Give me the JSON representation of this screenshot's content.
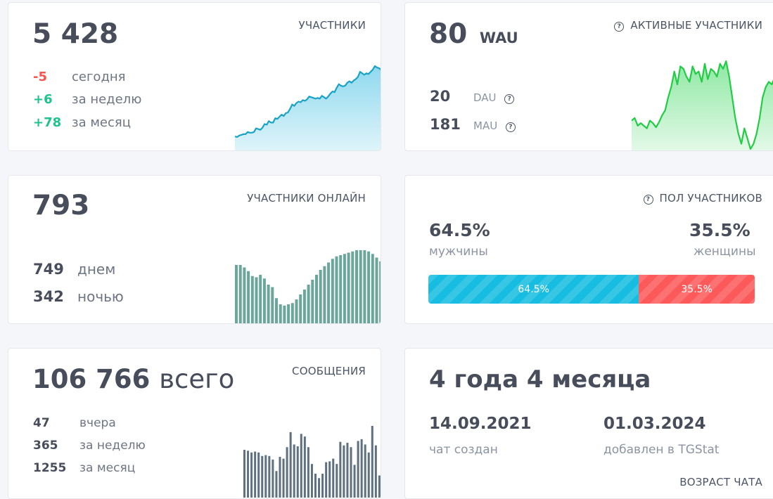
{
  "members": {
    "count": "5 428",
    "caption": "УЧАСТНИКИ",
    "rows": [
      {
        "delta": "-5",
        "label": "сегодня"
      },
      {
        "delta": "+6",
        "label": "за неделю"
      },
      {
        "delta": "+78",
        "label": "за месяц"
      }
    ]
  },
  "wau": {
    "count": "80",
    "unit": "WAU",
    "caption": "АКТИВНЫЕ УЧАСТНИКИ",
    "rows": [
      {
        "value": "20",
        "label": "DAU"
      },
      {
        "value": "181",
        "label": "MAU"
      }
    ]
  },
  "online": {
    "count": "793",
    "caption": "УЧАСТНИКИ ОНЛАЙН",
    "rows": [
      {
        "value": "749",
        "label": "днем"
      },
      {
        "value": "342",
        "label": "ночью"
      }
    ]
  },
  "gender": {
    "caption": "ПОЛ УЧАСТНИКОВ",
    "male_pct": "64.5%",
    "male_label": "мужчины",
    "female_pct": "35.5%",
    "female_label": "женщины",
    "male_fraction": 0.645,
    "male_bar_label": "64.5%",
    "female_bar_label": "35.5%",
    "male_color": "#16bde0",
    "female_color": "#fc5a5a"
  },
  "messages": {
    "total": "106 766",
    "total_suffix": "всего",
    "caption": "СООБЩЕНИЯ",
    "rows": [
      {
        "value": "47",
        "label": "вчера"
      },
      {
        "value": "365",
        "label": "за неделю"
      },
      {
        "value": "1255",
        "label": "за месяц"
      }
    ]
  },
  "age": {
    "title": "4 года 4 месяца",
    "created_date": "14.09.2021",
    "created_label": "чат создан",
    "added_date": "01.03.2024",
    "added_label": "добавлен в TGStat",
    "caption": "ВОЗРАСТ ЧАТА"
  },
  "chart_data": [
    {
      "type": "area",
      "title": "",
      "values": [
        3,
        2,
        4,
        5,
        6,
        6,
        9,
        8,
        8,
        9,
        14,
        13,
        12,
        15,
        20,
        19,
        24,
        22,
        22,
        28,
        27,
        30,
        33,
        31,
        35,
        36,
        41,
        47,
        45,
        49,
        51,
        50,
        53,
        52,
        54,
        58,
        57,
        56,
        55,
        56,
        55,
        59,
        57,
        55,
        58,
        62,
        65,
        64,
        70,
        75,
        73,
        72,
        73,
        77,
        79,
        77,
        80,
        82,
        85,
        92,
        90,
        88,
        90,
        89,
        92,
        95,
        100,
        98,
        97,
        95
      ],
      "color": "#1aa3c7"
    },
    {
      "type": "area",
      "title": "",
      "values": [
        55,
        60,
        45,
        50,
        45,
        40,
        55,
        50,
        42,
        52,
        65,
        75,
        100,
        120,
        150,
        125,
        160,
        155,
        140,
        130,
        160,
        145,
        150,
        130,
        165,
        135,
        155,
        150,
        140,
        165,
        155,
        170,
        140,
        100,
        60,
        30,
        10,
        40,
        20,
        0,
        10,
        30,
        60,
        100,
        120,
        130,
        125,
        140,
        150
      ],
      "color": "#22cc44"
    },
    {
      "type": "bar",
      "title": "",
      "values": [
        48,
        48,
        46,
        43,
        39,
        38,
        40,
        37,
        32,
        30,
        21,
        16,
        15,
        16,
        17,
        20,
        24,
        28,
        32,
        36,
        40,
        44,
        47,
        50,
        53,
        55,
        56,
        57,
        58,
        59,
        60,
        60,
        60,
        59,
        57,
        54,
        51
      ],
      "color": "#6aa69b"
    },
    {
      "type": "bar",
      "title": "",
      "values": [
        54,
        53,
        51,
        52,
        51,
        47,
        48,
        47,
        43,
        30,
        46,
        44,
        57,
        74,
        60,
        58,
        72,
        69,
        57,
        38,
        27,
        22,
        27,
        40,
        41,
        44,
        38,
        63,
        59,
        62,
        57,
        37,
        64,
        66,
        60,
        51,
        81,
        59,
        25
      ],
      "color": "#5f7180"
    }
  ]
}
